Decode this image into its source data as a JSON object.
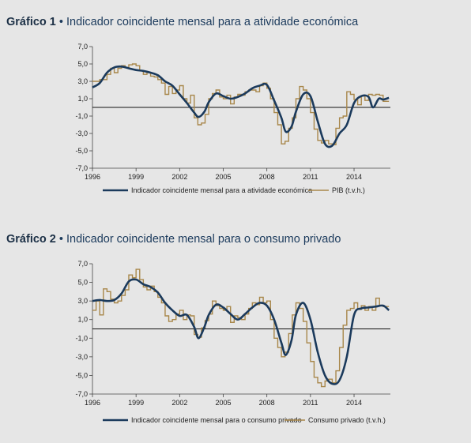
{
  "charts": [
    {
      "title_prefix": "Gráfico 1",
      "title_sep": " • ",
      "title_text": "Indicador coincidente mensal para a atividade económica"
    },
    {
      "title_prefix": "Gráfico 2",
      "title_sep": " • ",
      "title_text": "Indicador coincidente mensal para o consumo privado"
    }
  ],
  "colors": {
    "indicator": "#1b3a5c",
    "official": "#a8874a"
  },
  "chart_data": [
    {
      "type": "line",
      "title": "Gráfico 1 • Indicador coincidente mensal para a atividade económica",
      "ylim": [
        -7,
        7
      ],
      "x_range": [
        1996,
        2016.5
      ],
      "yticks": [
        "7,0",
        "5,0",
        "3,0",
        "1,0",
        "-1,0",
        "-3,0",
        "-5,0",
        "-7,0"
      ],
      "ytick_values": [
        7,
        5,
        3,
        1,
        -1,
        -3,
        -5,
        -7
      ],
      "xticks": [
        "1996",
        "1999",
        "2002",
        "2005",
        "2008",
        "2011",
        "2014"
      ],
      "xtick_values": [
        1996,
        1999,
        2002,
        2005,
        2008,
        2011,
        2014
      ],
      "series": [
        {
          "name": "Indicador coincidente mensal para a atividade económica",
          "style": "smooth",
          "x": [
            1996,
            1996.5,
            1997,
            1997.5,
            1998,
            1998.5,
            1999,
            1999.5,
            2000,
            2000.5,
            2001,
            2001.5,
            2002,
            2002.5,
            2003,
            2003.3,
            2003.7,
            2004,
            2004.5,
            2005,
            2005.5,
            2006,
            2006.5,
            2007,
            2007.5,
            2008,
            2008.5,
            2009,
            2009.3,
            2009.7,
            2010,
            2010.5,
            2011,
            2011.5,
            2012,
            2012.5,
            2013,
            2013.5,
            2014,
            2014.5,
            2015,
            2015.3,
            2015.7,
            2016,
            2016.4
          ],
          "y": [
            2.3,
            2.8,
            4.0,
            4.6,
            4.7,
            4.5,
            4.3,
            4.2,
            4.0,
            3.7,
            3.0,
            2.5,
            1.5,
            0.5,
            -0.6,
            -1.1,
            -0.5,
            0.6,
            1.6,
            1.3,
            1.0,
            1.2,
            1.6,
            2.2,
            2.5,
            2.6,
            0.8,
            -1.2,
            -2.8,
            -2.2,
            -0.5,
            1.5,
            1.3,
            -1.6,
            -4.2,
            -4.4,
            -3.0,
            -2.0,
            0.5,
            1.3,
            1.2,
            0.0,
            1.0,
            0.9,
            1.1
          ]
        },
        {
          "name": "PIB (t.v.h.)",
          "style": "step",
          "x": [
            1996,
            1996.5,
            1997,
            1997.25,
            1997.5,
            1997.75,
            1998,
            1998.25,
            1998.5,
            1998.75,
            1999,
            1999.25,
            1999.5,
            1999.75,
            2000,
            2000.25,
            2000.5,
            2000.75,
            2001,
            2001.25,
            2001.5,
            2001.75,
            2002,
            2002.25,
            2002.5,
            2002.75,
            2003,
            2003.25,
            2003.5,
            2003.75,
            2004,
            2004.25,
            2004.5,
            2004.75,
            2005,
            2005.25,
            2005.5,
            2005.75,
            2006,
            2006.25,
            2006.5,
            2006.75,
            2007,
            2007.25,
            2007.5,
            2007.75,
            2008,
            2008.25,
            2008.5,
            2008.75,
            2009,
            2009.25,
            2009.5,
            2009.75,
            2010,
            2010.25,
            2010.5,
            2010.75,
            2011,
            2011.25,
            2011.5,
            2011.75,
            2012,
            2012.25,
            2012.5,
            2012.75,
            2013,
            2013.25,
            2013.5,
            2013.75,
            2014,
            2014.25,
            2014.5,
            2014.75,
            2015,
            2015.25,
            2015.5,
            2015.75,
            2016,
            2016.4
          ],
          "y": [
            3.0,
            3.2,
            3.8,
            4.5,
            4.0,
            4.5,
            4.8,
            4.6,
            4.9,
            5.0,
            4.8,
            4.2,
            3.8,
            4.0,
            3.6,
            3.5,
            3.2,
            2.8,
            1.5,
            2.4,
            1.6,
            2.0,
            2.5,
            1.0,
            0.5,
            1.4,
            -1.2,
            -2.0,
            -1.8,
            -0.8,
            1.0,
            1.6,
            2.0,
            1.2,
            1.0,
            1.4,
            0.4,
            1.2,
            1.5,
            1.4,
            1.8,
            2.0,
            2.0,
            1.8,
            2.5,
            2.8,
            2.2,
            1.0,
            -0.6,
            -2.0,
            -4.2,
            -3.9,
            -2.4,
            -1.2,
            1.0,
            2.4,
            2.0,
            1.0,
            -0.6,
            -2.5,
            -3.8,
            -4.1,
            -3.8,
            -4.2,
            -4.3,
            -2.4,
            -1.2,
            -1.0,
            1.8,
            1.5,
            0.9,
            0.3,
            1.3,
            0.8,
            1.5,
            1.4,
            1.5,
            1.4,
            0.7,
            0.7
          ]
        }
      ],
      "legend": [
        "Indicador coincidente mensal para a atividade económica",
        "PIB (t.v.h.)"
      ],
      "legend_position": "bottom"
    },
    {
      "type": "line",
      "title": "Gráfico 2 • Indicador coincidente mensal para o consumo privado",
      "ylim": [
        -7,
        7
      ],
      "x_range": [
        1996,
        2016.5
      ],
      "yticks": [
        "7,0",
        "5,0",
        "3,0",
        "1,0",
        "-1,0",
        "-3,0",
        "-5,0",
        "-7,0"
      ],
      "ytick_values": [
        7,
        5,
        3,
        1,
        -1,
        -3,
        -5,
        -7
      ],
      "xticks": [
        "1996",
        "1999",
        "2002",
        "2005",
        "2008",
        "2011",
        "2014"
      ],
      "xtick_values": [
        1996,
        1999,
        2002,
        2005,
        2008,
        2011,
        2014
      ],
      "series": [
        {
          "name": "Indicador coincidente mensal para o consumo privado",
          "style": "smooth",
          "x": [
            1996,
            1996.5,
            1997,
            1997.5,
            1998,
            1998.5,
            1999,
            1999.5,
            2000,
            2000.5,
            2001,
            2001.5,
            2002,
            2002.5,
            2003,
            2003.3,
            2003.7,
            2004,
            2004.5,
            2005,
            2005.5,
            2006,
            2006.5,
            2007,
            2007.5,
            2008,
            2008.5,
            2009,
            2009.3,
            2009.7,
            2010,
            2010.5,
            2011,
            2011.5,
            2012,
            2012.5,
            2013,
            2013.5,
            2014,
            2014.5,
            2015,
            2015.5,
            2016,
            2016.4
          ],
          "y": [
            3.0,
            3.1,
            3.0,
            3.1,
            3.8,
            5.1,
            5.3,
            4.8,
            4.5,
            3.9,
            2.8,
            2.0,
            1.4,
            1.5,
            0.2,
            -1.0,
            0.2,
            1.5,
            2.6,
            2.3,
            1.6,
            1.0,
            1.6,
            2.3,
            2.8,
            2.5,
            1.0,
            -1.5,
            -2.8,
            -1.2,
            1.5,
            2.8,
            1.0,
            -2.5,
            -5.0,
            -5.9,
            -5.5,
            -3.0,
            1.5,
            2.2,
            2.3,
            2.4,
            2.5,
            2.0
          ]
        },
        {
          "name": "Consumo privado (t.v.h.)",
          "style": "step",
          "x": [
            1996,
            1996.25,
            1996.5,
            1996.75,
            1997,
            1997.25,
            1997.5,
            1997.75,
            1998,
            1998.25,
            1998.5,
            1998.75,
            1999,
            1999.25,
            1999.5,
            1999.75,
            2000,
            2000.25,
            2000.5,
            2000.75,
            2001,
            2001.25,
            2001.5,
            2001.75,
            2002,
            2002.25,
            2002.5,
            2002.75,
            2003,
            2003.25,
            2003.5,
            2003.75,
            2004,
            2004.25,
            2004.5,
            2004.75,
            2005,
            2005.25,
            2005.5,
            2005.75,
            2006,
            2006.25,
            2006.5,
            2006.75,
            2007,
            2007.25,
            2007.5,
            2007.75,
            2008,
            2008.25,
            2008.5,
            2008.75,
            2009,
            2009.25,
            2009.5,
            2009.75,
            2010,
            2010.25,
            2010.5,
            2010.75,
            2011,
            2011.25,
            2011.5,
            2011.75,
            2012,
            2012.25,
            2012.5,
            2012.75,
            2013,
            2013.25,
            2013.5,
            2013.75,
            2014,
            2014.25,
            2014.5,
            2014.75,
            2015,
            2015.25,
            2015.5,
            2015.75,
            2016,
            2016.4
          ],
          "y": [
            2.0,
            3.0,
            1.5,
            4.3,
            4.0,
            3.2,
            2.8,
            3.0,
            3.6,
            4.2,
            5.8,
            5.5,
            6.4,
            5.3,
            4.5,
            4.2,
            4.6,
            4.0,
            3.4,
            2.8,
            1.4,
            0.8,
            1.0,
            1.6,
            2.0,
            1.0,
            1.5,
            1.4,
            -0.6,
            -0.9,
            0.1,
            0.9,
            1.6,
            3.0,
            2.5,
            2.2,
            2.0,
            2.4,
            0.7,
            1.4,
            1.2,
            1.0,
            1.6,
            2.2,
            2.8,
            2.6,
            3.4,
            2.8,
            3.0,
            1.0,
            -1.0,
            -2.0,
            -3.0,
            -2.5,
            -0.5,
            1.5,
            2.8,
            2.2,
            0.8,
            -1.5,
            -3.5,
            -5.2,
            -5.8,
            -6.2,
            -5.6,
            -5.4,
            -5.8,
            -4.5,
            -2.0,
            0.4,
            2.0,
            2.2,
            2.8,
            2.1,
            2.5,
            2.0,
            2.4,
            2.0,
            3.3,
            2.5,
            2.4,
            2.4
          ]
        }
      ],
      "legend": [
        "Indicador coincidente mensal para o consumo privado",
        "Consumo privado (t.v.h.)"
      ],
      "legend_position": "bottom"
    }
  ]
}
